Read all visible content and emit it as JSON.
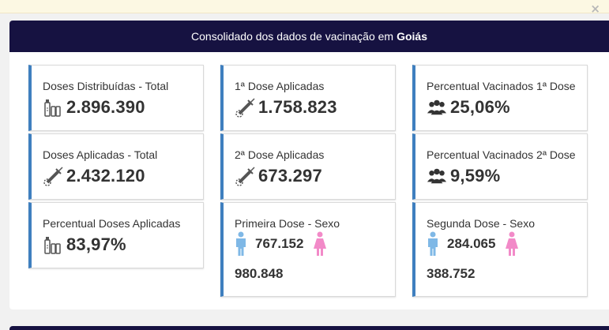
{
  "header": {
    "title_prefix": "Consolidado dos dados de vacinação em",
    "title_region": "Goiás"
  },
  "colors": {
    "header_bg": "#161241",
    "card_accent": "#3f7fbf",
    "male": "#7fb8e6",
    "female": "#f28ac8"
  },
  "cards": {
    "doses_distribuidas": {
      "label": "Doses Distribuídas - Total",
      "value": "2.896.390",
      "icon": "vaccine-vials-icon"
    },
    "doses_aplicadas": {
      "label": "Doses Aplicadas - Total",
      "value": "2.432.120",
      "icon": "syringe-icon"
    },
    "percentual_doses": {
      "label": "Percentual Doses Aplicadas",
      "value": "83,97%",
      "icon": "vaccine-vials-icon"
    },
    "primeira_dose": {
      "label": "1ª Dose Aplicadas",
      "value": "1.758.823",
      "icon": "syringe-icon"
    },
    "segunda_dose": {
      "label": "2ª Dose Aplicadas",
      "value": "673.297",
      "icon": "syringe-icon"
    },
    "primeira_sexo": {
      "label": "Primeira Dose - Sexo",
      "male": "767.152",
      "female": "980.848"
    },
    "perc_vac_1": {
      "label": "Percentual Vacinados 1ª Dose",
      "value": "25,06%",
      "icon": "people-group-icon"
    },
    "perc_vac_2": {
      "label": "Percentual Vacinados 2ª Dose",
      "value": "9,59%",
      "icon": "people-group-icon"
    },
    "segunda_sexo": {
      "label": "Segunda Dose - Sexo",
      "male": "284.065",
      "female": "388.752"
    }
  }
}
